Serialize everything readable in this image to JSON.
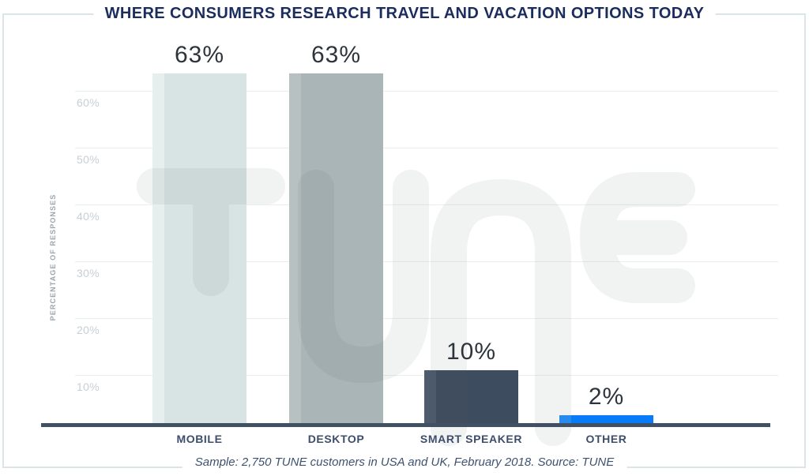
{
  "chart_data": {
    "type": "bar",
    "title": "WHERE CONSUMERS RESEARCH TRAVEL AND VACATION OPTIONS TODAY",
    "categories": [
      "MOBILE",
      "DESKTOP",
      "SMART SPEAKER",
      "OTHER"
    ],
    "values": [
      63,
      63,
      10,
      2
    ],
    "value_labels": [
      "63%",
      "63%",
      "10%",
      "2%"
    ],
    "ylabel": "PERCENTAGE OF RESPONSES",
    "xlabel": "",
    "ytick_values": [
      10,
      20,
      30,
      40,
      50,
      60
    ],
    "ytick_labels": [
      "10%",
      "20%",
      "30%",
      "40%",
      "50%",
      "60%"
    ],
    "ylim": [
      0,
      65
    ],
    "grid": true,
    "legend_position": "none",
    "bar_colors": [
      "#d8e3e4",
      "#a9b5b6",
      "#3e4c60",
      "#077bf8"
    ],
    "bar_highlight_colors": [
      "#e6eeee",
      "#b7c1c2",
      "#4d5b6d",
      "#2490fa"
    ],
    "watermark": "TUNE",
    "source_note": "Sample: 2,750 TUNE customers in USA and UK, February 2018. Source: TUNE"
  },
  "colors": {
    "background": "#ffffff",
    "frame_border": "#d9e5e7",
    "title_navy": "#1b2d5e",
    "footer_text": "#3e5270",
    "axis_line": "#415062",
    "gridline": "#e9efef",
    "tick_label": "#c7cfd6",
    "y_axis_title": "#9aa5ae",
    "value_label": "#2e343b",
    "category_label": "#3c4e6b",
    "watermark": "rgba(75,85,95,0.08)"
  }
}
